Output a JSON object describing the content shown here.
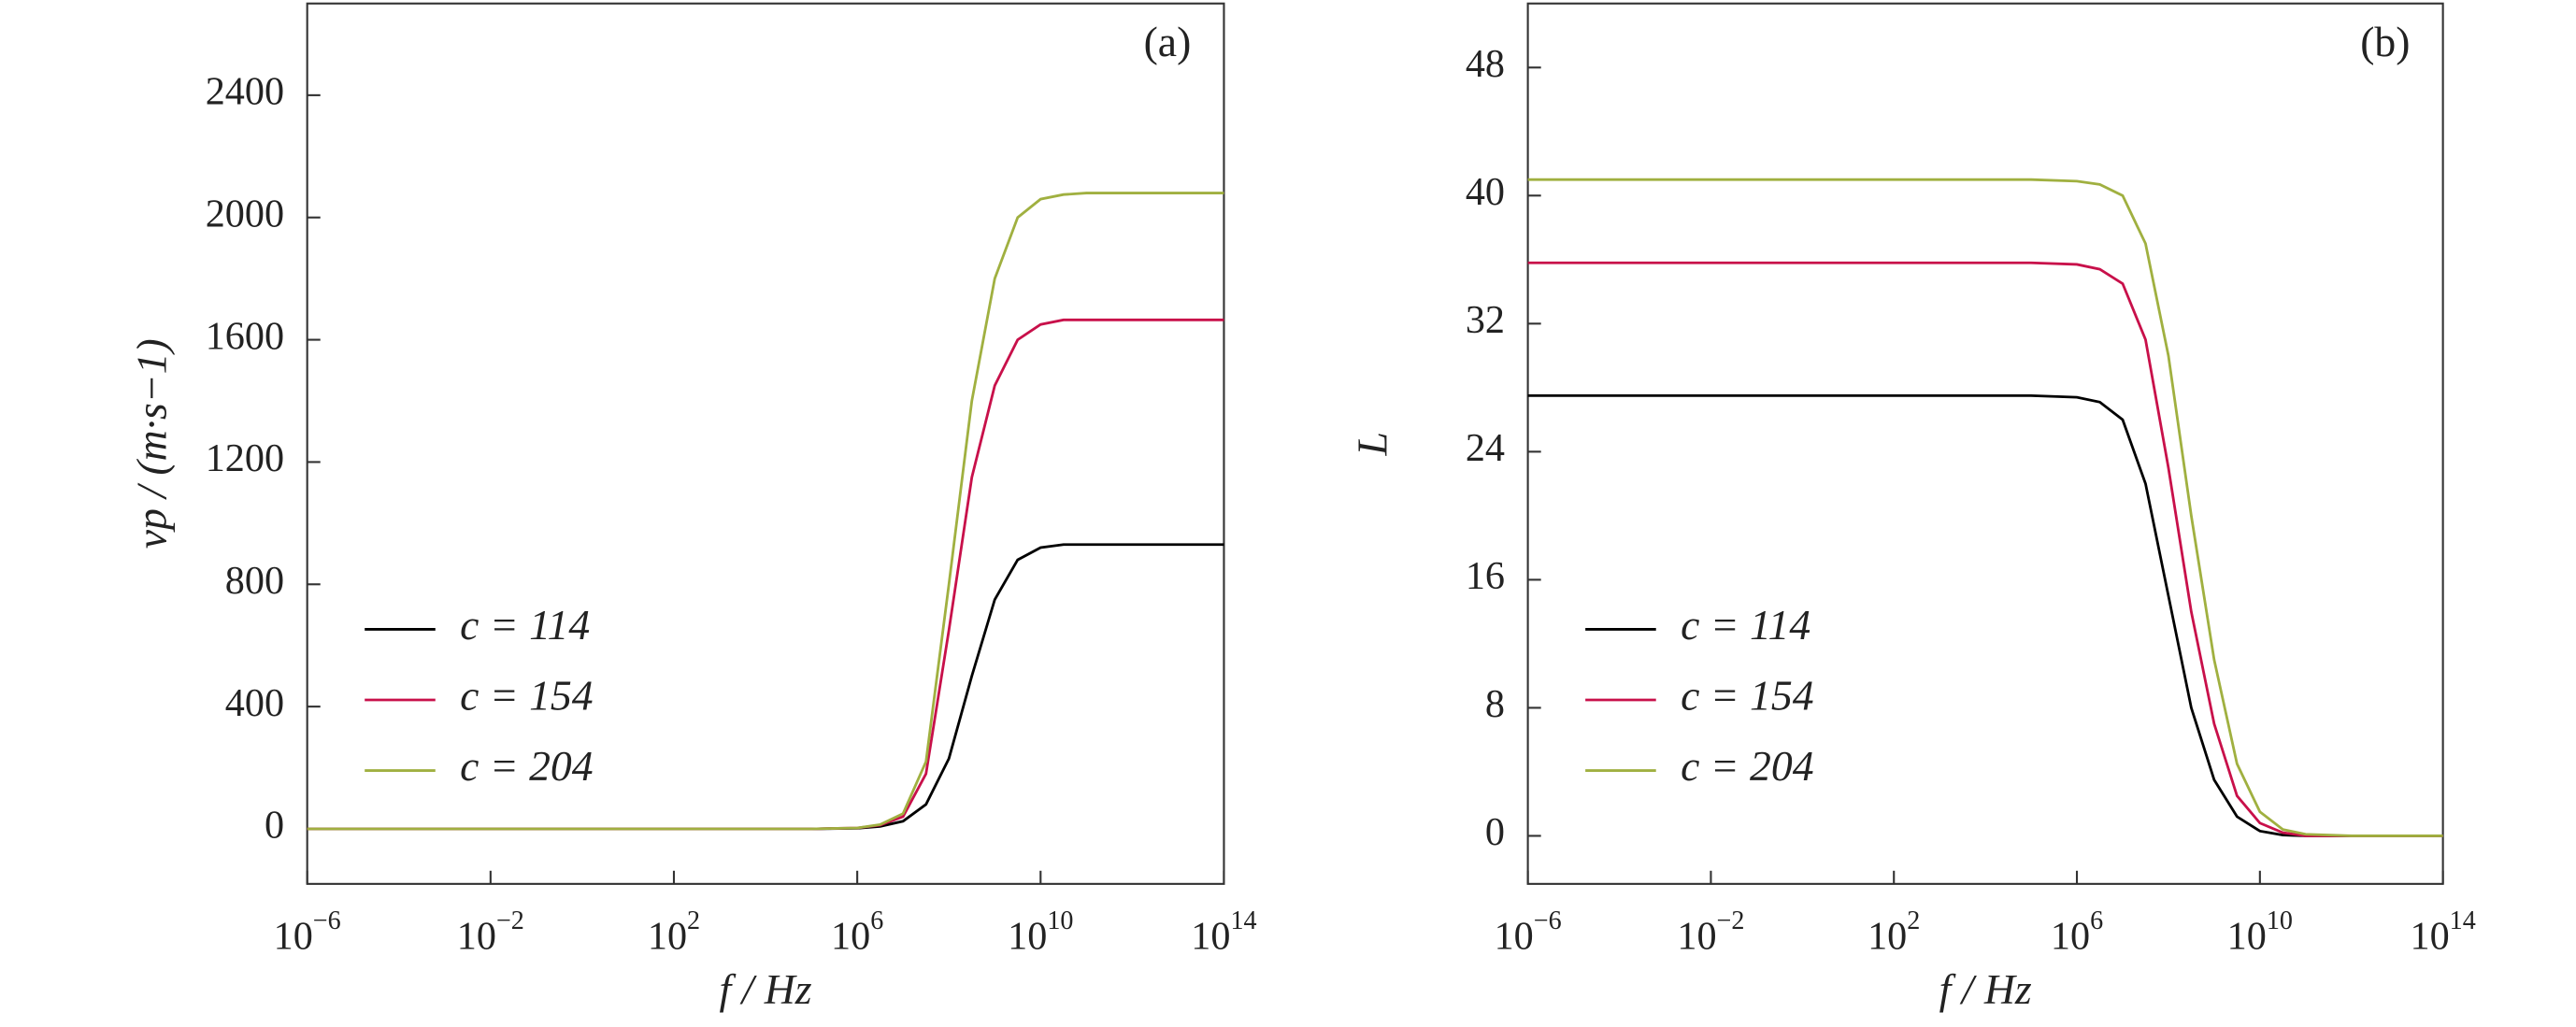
{
  "chart_data": [
    {
      "type": "line",
      "annotation": "(a)",
      "xlabel": "f / Hz",
      "ylabel": "vp / (m·s−1)",
      "log_x": true,
      "legend": "lower left",
      "x": [
        1e-06,
        0.01,
        100,
        100000,
        1000000,
        3162278,
        10000000,
        31622777,
        100000000,
        316227766,
        1000000000,
        3162277660,
        10000000000,
        31622776602,
        100000000000,
        1000000000000,
        100000000000000
      ],
      "xlim": [
        1e-06,
        100000000000000
      ],
      "xticks": [
        {
          "value": 1e-06,
          "label": "10−6"
        },
        {
          "value": 0.01,
          "label": "10−2"
        },
        {
          "value": 100,
          "label": "102"
        },
        {
          "value": 1000000,
          "label": "106"
        },
        {
          "value": 10000000000,
          "label": "1010"
        },
        {
          "value": 100000000000000,
          "label": "1014"
        }
      ],
      "ylim": [
        -180,
        2700
      ],
      "yticks": [
        0,
        400,
        800,
        1200,
        1600,
        2000,
        2400
      ],
      "series": [
        {
          "name": "c = 114",
          "color": "#000000",
          "values": [
            0,
            0,
            0,
            0,
            2,
            8,
            25,
            80,
            230,
            500,
            750,
            880,
            920,
            930,
            930,
            930,
            930
          ]
        },
        {
          "name": "c = 154",
          "color": "#c8104a",
          "values": [
            0,
            0,
            0,
            0,
            3,
            12,
            40,
            180,
            650,
            1150,
            1450,
            1600,
            1650,
            1665,
            1665,
            1665,
            1665
          ]
        },
        {
          "name": "c = 204",
          "color": "#a0b040",
          "values": [
            0,
            0,
            0,
            0,
            3,
            14,
            50,
            220,
            800,
            1400,
            1800,
            2000,
            2060,
            2075,
            2080,
            2080,
            2080
          ]
        }
      ]
    },
    {
      "type": "line",
      "annotation": "(b)",
      "xlabel": "f / Hz",
      "ylabel": "L",
      "log_x": true,
      "legend": "lower left",
      "x": [
        1e-06,
        0.01,
        100,
        100000,
        1000000,
        3162278,
        10000000,
        31622777,
        100000000,
        316227766,
        1000000000,
        3162277660,
        10000000000,
        31622776602,
        100000000000,
        1000000000000,
        100000000000000
      ],
      "xlim": [
        1e-06,
        100000000000000
      ],
      "xticks": [
        {
          "value": 1e-06,
          "label": "10−6"
        },
        {
          "value": 0.01,
          "label": "10−2"
        },
        {
          "value": 100,
          "label": "102"
        },
        {
          "value": 1000000,
          "label": "106"
        },
        {
          "value": 10000000000,
          "label": "1010"
        },
        {
          "value": 100000000000000,
          "label": "1014"
        }
      ],
      "ylim": [
        -3,
        52
      ],
      "yticks": [
        0,
        8,
        16,
        24,
        32,
        40,
        48
      ],
      "series": [
        {
          "name": "c = 114",
          "color": "#000000",
          "values": [
            27.5,
            27.5,
            27.5,
            27.5,
            27.4,
            27.1,
            26,
            22,
            15,
            8,
            3.5,
            1.2,
            0.3,
            0.05,
            0,
            0,
            0
          ]
        },
        {
          "name": "c = 154",
          "color": "#c8104a",
          "values": [
            35.8,
            35.8,
            35.8,
            35.8,
            35.7,
            35.4,
            34.5,
            31,
            23,
            14,
            7,
            2.5,
            0.8,
            0.2,
            0,
            0,
            0
          ]
        },
        {
          "name": "c = 204",
          "color": "#a0b040",
          "values": [
            41,
            41,
            41,
            41,
            40.9,
            40.7,
            40,
            37,
            30,
            20,
            11,
            4.5,
            1.5,
            0.4,
            0.1,
            0,
            0
          ]
        }
      ]
    }
  ]
}
